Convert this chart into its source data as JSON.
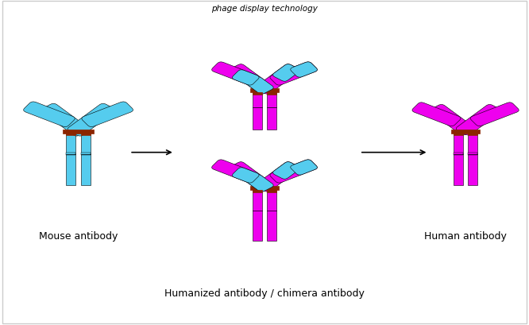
{
  "cyan": "#55CCEE",
  "magenta": "#EE00EE",
  "hinge_color": "#8B2500",
  "bg_color": "#FFFFFF",
  "border_color": "#CCCCCC",
  "title_top": "phage display technology",
  "label_mouse": "Mouse antibody",
  "label_chimera": "Humanized antibody / chimera antibody",
  "label_human": "Human antibody",
  "fig_w": 6.66,
  "fig_h": 4.1,
  "dpi": 100
}
